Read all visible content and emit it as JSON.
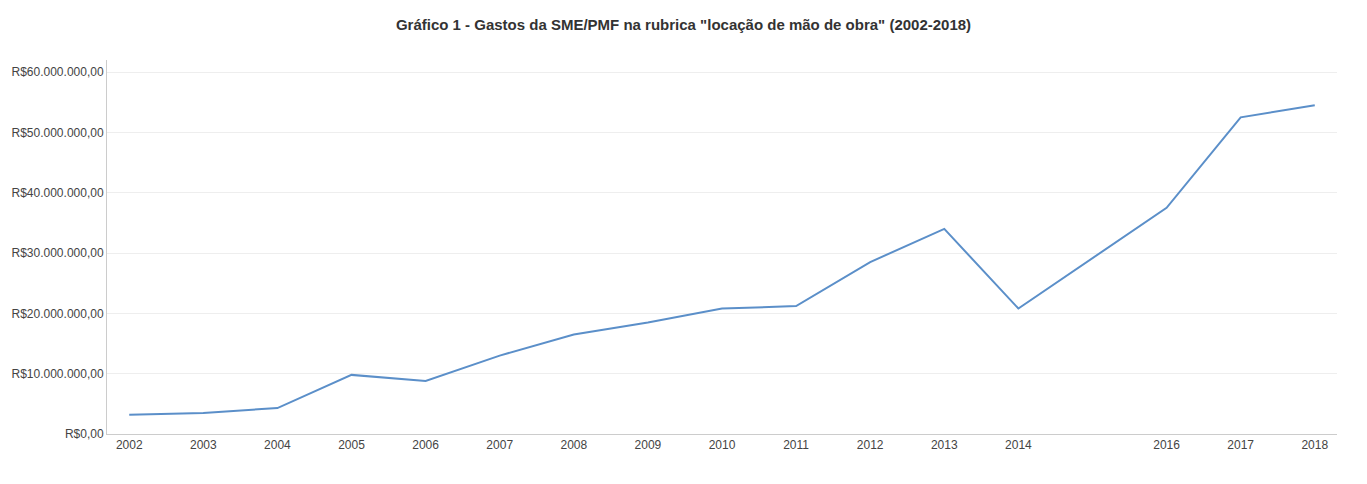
{
  "chart_data": {
    "type": "line",
    "title": "Gráfico 1 - Gastos da SME/PMF na rubrica \"locação de mão de obra\" (2002-2018)",
    "x": [
      2002,
      2003,
      2004,
      2005,
      2006,
      2007,
      2008,
      2009,
      2010,
      2011,
      2012,
      2013,
      2014,
      2016,
      2017,
      2018
    ],
    "values": [
      3200000,
      3500000,
      4300000,
      9800000,
      8800000,
      13000000,
      16500000,
      18500000,
      20800000,
      21200000,
      28500000,
      34000000,
      20800000,
      37500000,
      52500000,
      54500000
    ],
    "color": "#5B8FC9",
    "xlim": [
      2001.7,
      2018.3
    ],
    "xticks": [
      2002,
      2003,
      2004,
      2005,
      2006,
      2007,
      2008,
      2009,
      2010,
      2011,
      2012,
      2013,
      2014,
      2016,
      2017,
      2018
    ],
    "ylim": [
      0,
      62000000
    ],
    "yticks": [
      {
        "value": 0,
        "label": "R$0,00"
      },
      {
        "value": 10000000,
        "label": "R$10.000.000,00"
      },
      {
        "value": 20000000,
        "label": "R$20.000.000,00"
      },
      {
        "value": 30000000,
        "label": "R$30.000.000,00"
      },
      {
        "value": 40000000,
        "label": "R$40.000.000,00"
      },
      {
        "value": 50000000,
        "label": "R$50.000.000,00"
      },
      {
        "value": 60000000,
        "label": "R$60.000.000,00"
      }
    ],
    "grid": "y"
  }
}
